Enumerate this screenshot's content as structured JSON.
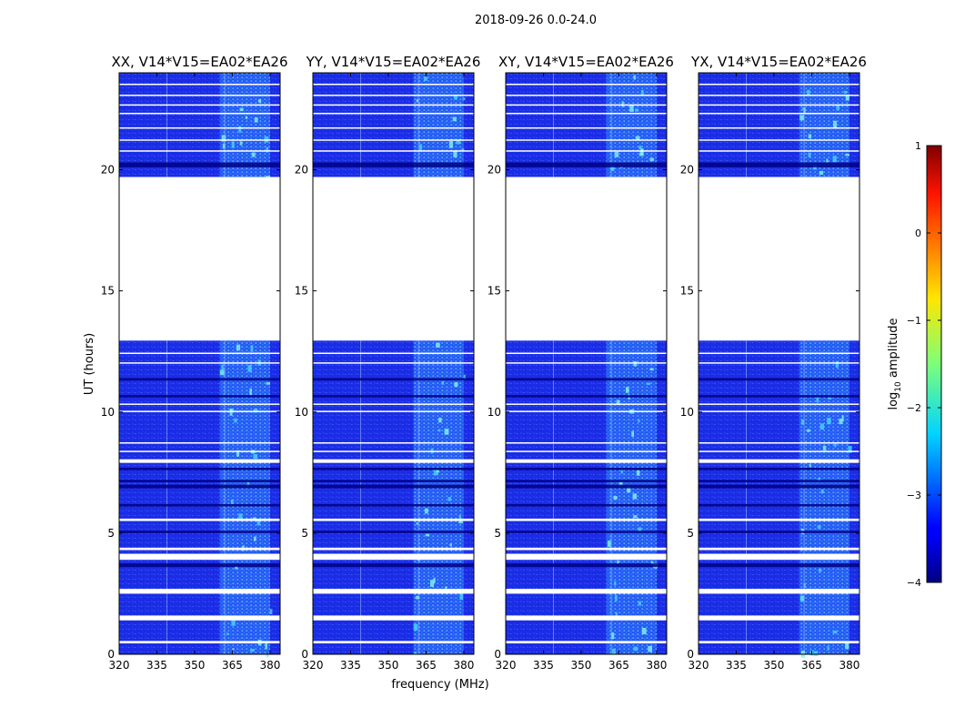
{
  "suptitle": "2018-09-26 0.0-24.0",
  "chart_data": {
    "type": "heatmap",
    "xlabel": "frequency (MHz)",
    "ylabel": "UT (hours)",
    "xlim": [
      320,
      384
    ],
    "ylim": [
      0,
      24
    ],
    "xticks": [
      320,
      335,
      350,
      365,
      380
    ],
    "yticks": [
      0,
      5,
      10,
      15,
      20
    ],
    "panels": [
      {
        "title": "XX, V14*V15=EA02*EA26",
        "pol": "XX"
      },
      {
        "title": "YY, V14*V15=EA02*EA26",
        "pol": "YY"
      },
      {
        "title": "XY, V14*V15=EA02*EA26",
        "pol": "XY"
      },
      {
        "title": "YX, V14*V15=EA02*EA26",
        "pol": "YX"
      }
    ],
    "data_gaps_hours": [
      [
        12.95,
        19.7
      ]
    ],
    "bright_band_mhz": [
      360,
      380
    ],
    "colorbar": {
      "label": "log",
      "label_sub": "10",
      "label_rest": " amplitude",
      "range": [
        -4,
        1
      ],
      "ticks": [
        1,
        0,
        -1,
        -2,
        -3,
        -4
      ],
      "colormap": "jet"
    }
  }
}
